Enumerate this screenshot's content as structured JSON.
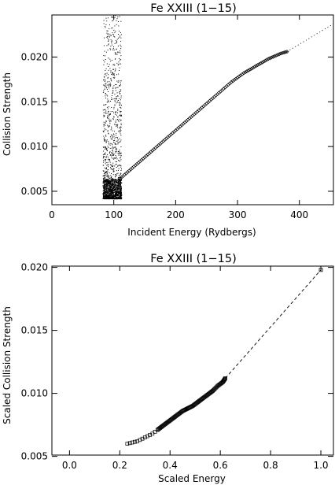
{
  "chart_data": [
    {
      "type": "scatter",
      "title": "Fe XXIII (1−15)",
      "xlabel": "Incident Energy (Rydbergs)",
      "ylabel": "Collision Strength",
      "xlim": [
        0,
        455
      ],
      "ylim": [
        0.0035,
        0.0247
      ],
      "xticks": [
        0,
        100,
        200,
        300,
        400
      ],
      "xtick_labels": [
        "0",
        "100",
        "200",
        "300",
        "400"
      ],
      "yticks": [
        0.005,
        0.01,
        0.015,
        0.02
      ],
      "ytick_labels": [
        "0.005",
        "0.010",
        "0.015",
        "0.020"
      ],
      "grid": false,
      "resonance_region": [
        82,
        112
      ],
      "resonance_range": [
        0.0042,
        0.0247
      ],
      "smooth_points": {
        "x": [
          110,
          120,
          130,
          140,
          150,
          160,
          170,
          180,
          190,
          200,
          210,
          220,
          230,
          240,
          250,
          260,
          270,
          280,
          290,
          300,
          310,
          320,
          330,
          340,
          350,
          360,
          370,
          380
        ],
        "y": [
          0.0064,
          0.007,
          0.0076,
          0.0082,
          0.0088,
          0.0094,
          0.01,
          0.0106,
          0.0112,
          0.0118,
          0.0124,
          0.013,
          0.0136,
          0.0142,
          0.0148,
          0.0154,
          0.016,
          0.0166,
          0.0172,
          0.0177,
          0.0182,
          0.0186,
          0.019,
          0.0194,
          0.0198,
          0.0201,
          0.0204,
          0.0206
        ]
      },
      "extrapolation": {
        "x": [
          380,
          455
        ],
        "y": [
          0.0206,
          0.0237
        ],
        "style": "dotted"
      }
    },
    {
      "type": "scatter",
      "title": "Fe XXIII (1−15)",
      "xlabel": "Scaled Energy",
      "ylabel": "Scaled Collision Strength",
      "xlim": [
        -0.07,
        1.05
      ],
      "ylim": [
        0.0051,
        0.0201
      ],
      "xticks": [
        0.0,
        0.2,
        0.4,
        0.6,
        0.8,
        1.0
      ],
      "xtick_labels": [
        "0.0",
        "0.2",
        "0.4",
        "0.6",
        "0.8",
        "1.0"
      ],
      "yticks": [
        0.005,
        0.01,
        0.015,
        0.02
      ],
      "ytick_labels": [
        "0.005",
        "0.010",
        "0.015",
        "0.020"
      ],
      "grid": false,
      "points": {
        "x": [
          0.23,
          0.25,
          0.27,
          0.29,
          0.31,
          0.33,
          0.35,
          0.37,
          0.39,
          0.41,
          0.43,
          0.45,
          0.47,
          0.49,
          0.51,
          0.53,
          0.55,
          0.57,
          0.59,
          0.61,
          0.62
        ],
        "y": [
          0.006,
          0.0061,
          0.0062,
          0.0064,
          0.0066,
          0.0068,
          0.0071,
          0.0074,
          0.0077,
          0.008,
          0.0083,
          0.0086,
          0.0088,
          0.009,
          0.0093,
          0.0096,
          0.0099,
          0.0102,
          0.0106,
          0.0109,
          0.0112
        ]
      },
      "endpoint": {
        "x": 1.0,
        "y": 0.0198
      },
      "extrapolation": {
        "x": [
          0.62,
          1.0
        ],
        "y": [
          0.0112,
          0.0198
        ],
        "style": "dashed"
      }
    }
  ]
}
